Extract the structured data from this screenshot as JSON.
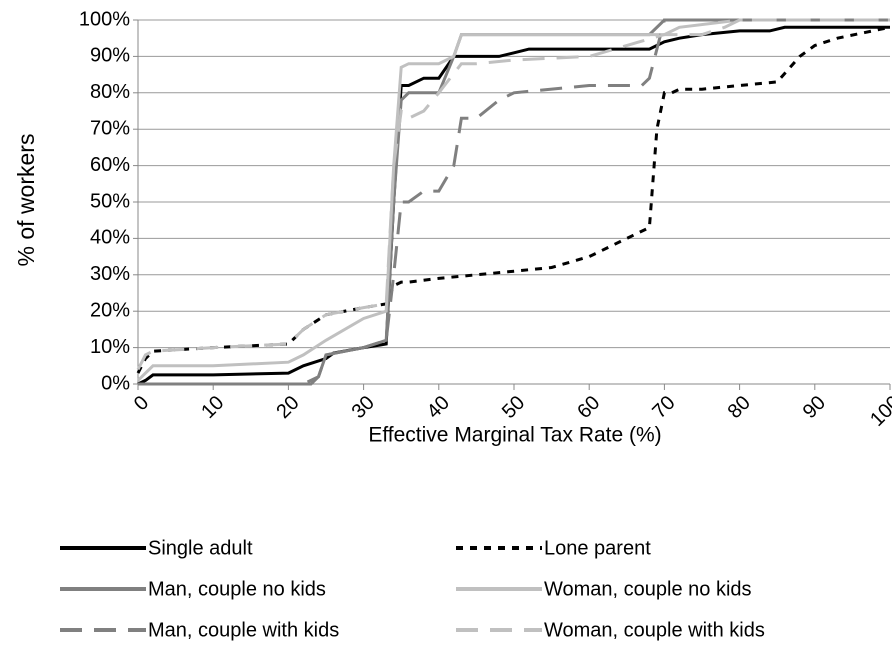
{
  "chart_data": {
    "type": "line",
    "xlabel": "Effective Marginal Tax Rate (%)",
    "ylabel": "% of workers",
    "xlim": [
      0,
      100
    ],
    "xticks": [
      0,
      10,
      20,
      30,
      40,
      50,
      60,
      70,
      80,
      90,
      100
    ],
    "ylim": [
      0,
      100
    ],
    "yticks": [
      {
        "value": 0,
        "label": "0%"
      },
      {
        "value": 10,
        "label": "10%"
      },
      {
        "value": 20,
        "label": "20%"
      },
      {
        "value": 30,
        "label": "30%"
      },
      {
        "value": 40,
        "label": "40%"
      },
      {
        "value": 50,
        "label": "50%"
      },
      {
        "value": 60,
        "label": "60%"
      },
      {
        "value": 70,
        "label": "70%"
      },
      {
        "value": 80,
        "label": "80%"
      },
      {
        "value": 90,
        "label": "90%"
      },
      {
        "value": 100,
        "label": "100%"
      }
    ],
    "grid": true,
    "legend": "bottom",
    "series": [
      {
        "name": "Single adult",
        "color": "#000000",
        "style": "solid",
        "x": [
          0,
          1,
          2,
          10,
          20,
          22,
          25,
          26,
          30,
          33,
          34,
          35,
          36,
          38,
          39,
          40,
          42,
          43,
          48,
          50,
          52,
          60,
          68,
          70,
          72,
          75,
          80,
          84,
          86,
          90,
          100
        ],
        "values": [
          0,
          1,
          2.5,
          2.5,
          3,
          5,
          7,
          8.5,
          10,
          11,
          50,
          82,
          82,
          84,
          84,
          84,
          90,
          90,
          90,
          91,
          92,
          92,
          92,
          94,
          95,
          96,
          97,
          97,
          98,
          98,
          98
        ]
      },
      {
        "name": "Lone parent",
        "color": "#000000",
        "style": "dotted",
        "x": [
          0,
          1,
          2,
          10,
          20,
          22,
          25,
          30,
          33,
          34,
          35,
          36,
          40,
          45,
          50,
          55,
          60,
          65,
          68,
          69,
          70,
          71,
          72,
          75,
          80,
          85,
          88,
          90,
          93,
          100
        ],
        "values": [
          3,
          7,
          9,
          10,
          11,
          15,
          19,
          21,
          22,
          27,
          28,
          28,
          29,
          30,
          31,
          32,
          35,
          40,
          43,
          70,
          80,
          80,
          81,
          81,
          82,
          83,
          90,
          93,
          95,
          98
        ]
      },
      {
        "name": "Man, couple no kids",
        "color": "#808080",
        "style": "solid",
        "x": [
          0,
          22,
          23,
          24,
          25,
          30,
          33,
          34,
          35,
          36,
          38,
          40,
          42,
          43,
          50,
          60,
          68,
          70,
          72,
          100
        ],
        "values": [
          0,
          0,
          0,
          2,
          8,
          10,
          12,
          50,
          78,
          80,
          80,
          80,
          90,
          96,
          96,
          96,
          96,
          100,
          100,
          100
        ]
      },
      {
        "name": "Woman, couple no kids",
        "color": "#c0c0c0",
        "style": "solid",
        "x": [
          0,
          1,
          2,
          10,
          20,
          22,
          25,
          30,
          33,
          34,
          35,
          36,
          40,
          42,
          43,
          70,
          72,
          80,
          100
        ],
        "values": [
          1,
          3,
          5,
          5,
          6,
          8,
          12,
          18,
          20,
          60,
          87,
          88,
          88,
          90,
          96,
          96,
          98,
          100,
          100
        ]
      },
      {
        "name": "Man, couple with kids",
        "color": "#808080",
        "style": "dashed",
        "x": [
          0,
          22,
          24,
          25,
          30,
          33,
          34,
          35,
          36,
          38,
          40,
          42,
          43,
          45,
          48,
          50,
          60,
          67,
          68,
          70,
          100
        ],
        "values": [
          0,
          0,
          2,
          8,
          10,
          12,
          30,
          50,
          50,
          53,
          53,
          60,
          73,
          73,
          78,
          80,
          82,
          82,
          84,
          100,
          100
        ]
      },
      {
        "name": "Woman, couple with kids",
        "color": "#c0c0c0",
        "style": "dashed",
        "x": [
          0,
          1,
          2,
          10,
          20,
          22,
          25,
          30,
          33,
          34,
          35,
          36,
          38,
          40,
          43,
          45,
          50,
          60,
          70,
          75,
          78,
          80,
          100
        ],
        "values": [
          4,
          8,
          9,
          10,
          11,
          15,
          19,
          21,
          22,
          60,
          75,
          73,
          75,
          80,
          88,
          88,
          89,
          90,
          96,
          96,
          98,
          100,
          100
        ]
      }
    ]
  }
}
